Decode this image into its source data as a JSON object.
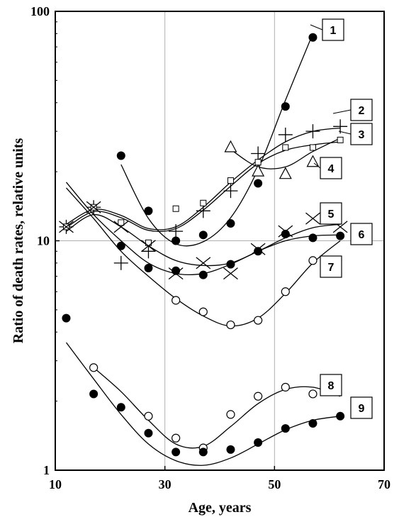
{
  "chart_data": {
    "type": "scatter",
    "title": "",
    "xlabel": "Age, years",
    "ylabel": "Ratio of death rates, relative units",
    "xlim": [
      10,
      70
    ],
    "ylim": [
      1,
      100
    ],
    "yscale": "log",
    "x_ticks": [
      10,
      30,
      50,
      70
    ],
    "y_ticks": [
      1,
      10,
      100
    ],
    "x_tick_labels": [
      "10",
      "30",
      "50",
      "70"
    ],
    "y_tick_labels": [
      "1",
      "10",
      "100"
    ],
    "grid": true,
    "series": [
      {
        "name": "1",
        "marker": "filled-circle",
        "x": [
          22,
          27,
          32,
          37,
          42,
          47,
          52,
          57
        ],
        "y": [
          23.5,
          13.5,
          10.0,
          10.6,
          11.9,
          17.8,
          38.5,
          77.0
        ],
        "fit_x": [
          22,
          27,
          32,
          37,
          42,
          47,
          52,
          57
        ],
        "fit_y": [
          21.5,
          12.5,
          9.7,
          9.9,
          12.6,
          20.5,
          41.0,
          80.0
        ]
      },
      {
        "name": "2",
        "marker": "plus",
        "x": [
          12,
          17,
          22,
          27,
          32,
          37,
          42,
          47,
          52,
          57,
          62
        ],
        "y": [
          11.5,
          14.0,
          8.0,
          9.0,
          11.0,
          13.5,
          16.5,
          24.0,
          29.0,
          30.0,
          31.5
        ],
        "fit_x": [
          12,
          17,
          22,
          27,
          32,
          37,
          42,
          47,
          52,
          57,
          62
        ],
        "fit_y": [
          11.8,
          13.7,
          12.9,
          11.3,
          11.5,
          14.0,
          18.0,
          22.5,
          27.0,
          30.0,
          31.0
        ]
      },
      {
        "name": "3",
        "marker": "open-square",
        "x": [
          12,
          17,
          22,
          27,
          32,
          37,
          42,
          47,
          52,
          57,
          62
        ],
        "y": [
          11.5,
          14.0,
          12.0,
          9.8,
          13.8,
          14.6,
          18.3,
          22.0,
          25.5,
          25.5,
          27.5
        ],
        "fit_x": [
          12,
          17,
          22,
          27,
          32,
          37,
          42,
          47,
          52,
          57,
          62
        ],
        "fit_y": [
          11.4,
          13.4,
          12.6,
          11.1,
          11.3,
          13.6,
          17.3,
          21.7,
          24.8,
          26.2,
          27.0
        ]
      },
      {
        "name": "4",
        "marker": "open-triangle",
        "x": [
          42,
          47,
          52,
          57
        ],
        "y": [
          25.5,
          20.0,
          19.5,
          22.0
        ],
        "fit_x": [
          42,
          47,
          52,
          57,
          62
        ],
        "fit_y": [
          25.0,
          21.0,
          21.0,
          24.5,
          28.0
        ]
      },
      {
        "name": "5",
        "marker": "cross",
        "x": [
          12,
          17,
          22,
          27,
          32,
          37,
          42,
          47,
          52,
          57,
          62
        ],
        "y": [
          11.5,
          14.0,
          11.5,
          9.5,
          7.2,
          8.0,
          7.2,
          9.2,
          11.0,
          12.5,
          11.5
        ],
        "fit_x": [
          12,
          17,
          22,
          27,
          32,
          37,
          42,
          47,
          52,
          57,
          62
        ],
        "fit_y": [
          11.0,
          13.0,
          11.5,
          9.5,
          8.2,
          7.8,
          8.0,
          9.0,
          10.3,
          11.4,
          11.8
        ]
      },
      {
        "name": "6",
        "marker": "filled-circle",
        "x": [
          22,
          27,
          32,
          37,
          42,
          47,
          52,
          57,
          62
        ],
        "y": [
          9.5,
          7.6,
          7.4,
          7.1,
          7.9,
          9.0,
          10.7,
          10.3,
          10.5
        ],
        "fit_x": [
          12,
          17,
          22,
          27,
          32,
          37,
          42,
          47,
          52,
          57,
          62
        ],
        "fit_y": [
          18.0,
          13.0,
          10.0,
          8.0,
          7.2,
          7.2,
          7.9,
          9.0,
          10.0,
          10.5,
          10.6
        ]
      },
      {
        "name": "7",
        "marker": "open-circle",
        "x": [
          32,
          37,
          42,
          47,
          52,
          57
        ],
        "y": [
          5.5,
          4.9,
          4.3,
          4.5,
          6.0,
          8.2
        ],
        "fit_x": [
          12,
          17,
          22,
          27,
          32,
          37,
          42,
          47,
          52,
          57,
          62
        ],
        "fit_y": [
          17.0,
          12.5,
          9.0,
          7.0,
          5.6,
          4.7,
          4.25,
          4.6,
          5.9,
          8.0,
          10.0
        ]
      },
      {
        "name": "8",
        "marker": "open-circle",
        "x": [
          17,
          27,
          32,
          37,
          42,
          47,
          52,
          57
        ],
        "y": [
          2.8,
          1.72,
          1.38,
          1.25,
          1.75,
          2.1,
          2.3,
          2.15
        ],
        "fit_x": [
          17,
          22,
          27,
          32,
          37,
          42,
          47,
          52,
          57,
          62
        ],
        "fit_y": [
          2.8,
          2.2,
          1.65,
          1.3,
          1.27,
          1.55,
          1.95,
          2.25,
          2.3,
          2.1
        ]
      },
      {
        "name": "9",
        "marker": "filled-circle",
        "x": [
          12,
          17,
          22,
          27,
          32,
          37,
          42,
          47,
          52,
          57,
          62
        ],
        "y": [
          4.6,
          2.15,
          1.88,
          1.45,
          1.2,
          1.2,
          1.23,
          1.32,
          1.52,
          1.6,
          1.72
        ],
        "fit_x": [
          12,
          17,
          22,
          27,
          32,
          37,
          42,
          47,
          52,
          57,
          62
        ],
        "fit_y": [
          3.6,
          2.5,
          1.75,
          1.3,
          1.1,
          1.05,
          1.13,
          1.3,
          1.5,
          1.65,
          1.72
        ]
      }
    ]
  }
}
